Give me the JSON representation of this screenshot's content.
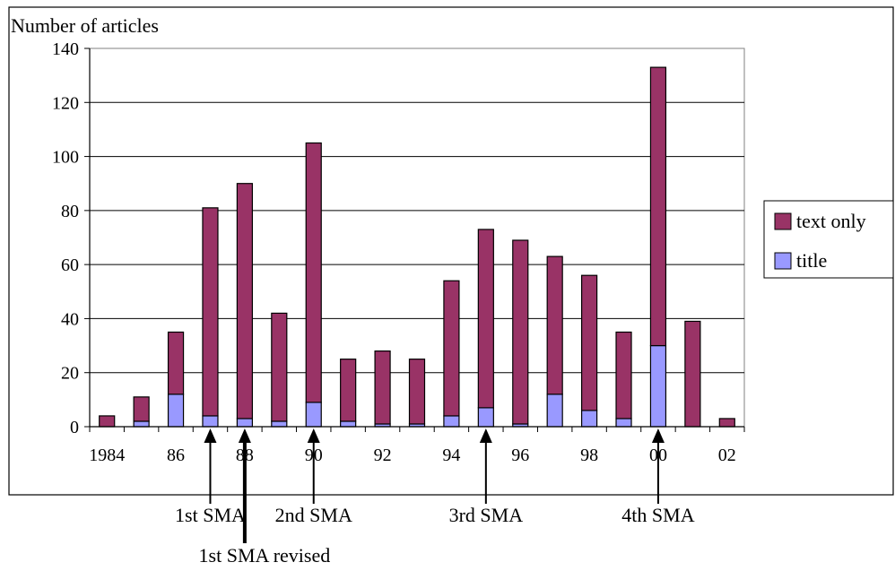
{
  "chart_data": {
    "type": "bar",
    "stacked": true,
    "ylabel": "Number of articles",
    "ylim": [
      0,
      140
    ],
    "yticks": [
      0,
      20,
      40,
      60,
      80,
      100,
      120,
      140
    ],
    "grid": true,
    "legend_position": "right",
    "categories": [
      "1984",
      "1985",
      "1986",
      "1987",
      "1988",
      "1989",
      "1990",
      "1991",
      "1992",
      "1993",
      "1994",
      "1995",
      "1996",
      "1997",
      "1998",
      "1999",
      "2000",
      "2001",
      "2002"
    ],
    "x_tick_labels": [
      "1984",
      "",
      "86",
      "",
      "88",
      "",
      "90",
      "",
      "92",
      "",
      "94",
      "",
      "96",
      "",
      "98",
      "",
      "00",
      "",
      "02"
    ],
    "series": [
      {
        "name": "title",
        "color": "#9999ff",
        "values": [
          0,
          2,
          12,
          4,
          3,
          2,
          9,
          2,
          1,
          1,
          4,
          7,
          1,
          12,
          6,
          3,
          30,
          0,
          0
        ]
      },
      {
        "name": "text only",
        "color": "#993366",
        "values": [
          4,
          9,
          23,
          77,
          87,
          40,
          96,
          23,
          27,
          24,
          50,
          66,
          68,
          51,
          50,
          32,
          103,
          39,
          3
        ]
      }
    ],
    "annotations": [
      {
        "label": "1st SMA",
        "year": "1987"
      },
      {
        "label": "1st SMA revised",
        "year": "1988"
      },
      {
        "label": "2nd SMA",
        "year": "1990"
      },
      {
        "label": "3rd SMA",
        "year": "1995"
      },
      {
        "label": "4th SMA",
        "year": "2000"
      }
    ]
  }
}
